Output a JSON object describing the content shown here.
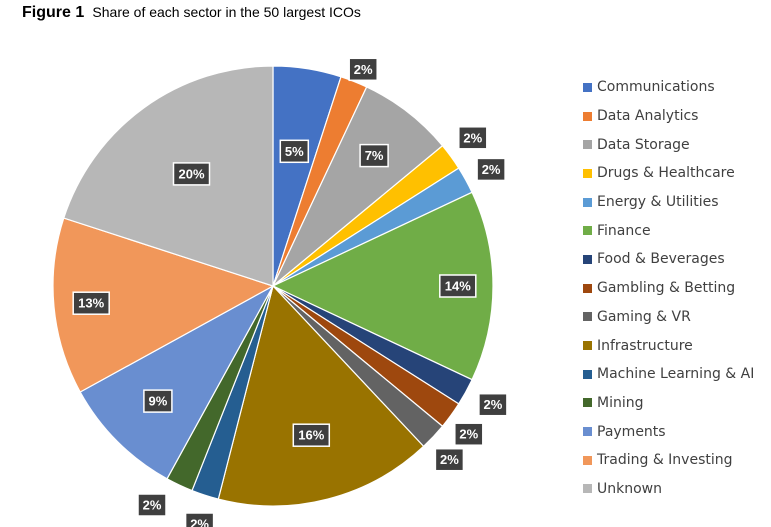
{
  "figure": {
    "number": "Figure 1",
    "caption": "Share of each sector in the 50 largest ICOs"
  },
  "chart_data": {
    "type": "pie",
    "title": "Share of each sector in the 50 largest ICOs",
    "legend_position": "right",
    "start_angle": "12 o'clock, clockwise",
    "slices": [
      {
        "name": "Communications",
        "value": 5,
        "label": "5%",
        "color": "#4472c4"
      },
      {
        "name": "Data Analytics",
        "value": 2,
        "label": "2%",
        "color": "#ed7d31"
      },
      {
        "name": "Data Storage",
        "value": 7,
        "label": "7%",
        "color": "#a5a5a5"
      },
      {
        "name": "Drugs & Healthcare",
        "value": 2,
        "label": "2%",
        "color": "#ffc000"
      },
      {
        "name": "Energy & Utilities",
        "value": 2,
        "label": "2%",
        "color": "#5b9bd5"
      },
      {
        "name": "Finance",
        "value": 14,
        "label": "14%",
        "color": "#70ad47"
      },
      {
        "name": "Food & Beverages",
        "value": 2,
        "label": "2%",
        "color": "#264478"
      },
      {
        "name": "Gambling & Betting",
        "value": 2,
        "label": "2%",
        "color": "#9e480e"
      },
      {
        "name": "Gaming & VR",
        "value": 2,
        "label": "2%",
        "color": "#636363"
      },
      {
        "name": "Infrastructure",
        "value": 16,
        "label": "16%",
        "color": "#997300"
      },
      {
        "name": "Machine Learning & AI",
        "value": 2,
        "label": "2%",
        "color": "#255e91"
      },
      {
        "name": "Mining",
        "value": 2,
        "label": "2%",
        "color": "#43682b"
      },
      {
        "name": "Payments",
        "value": 9,
        "label": "9%",
        "color": "#698ed0"
      },
      {
        "name": "Trading & Investing",
        "value": 13,
        "label": "13%",
        "color": "#f1975a"
      },
      {
        "name": "Unknown",
        "value": 20,
        "label": "20%",
        "color": "#b7b7b7"
      }
    ]
  }
}
